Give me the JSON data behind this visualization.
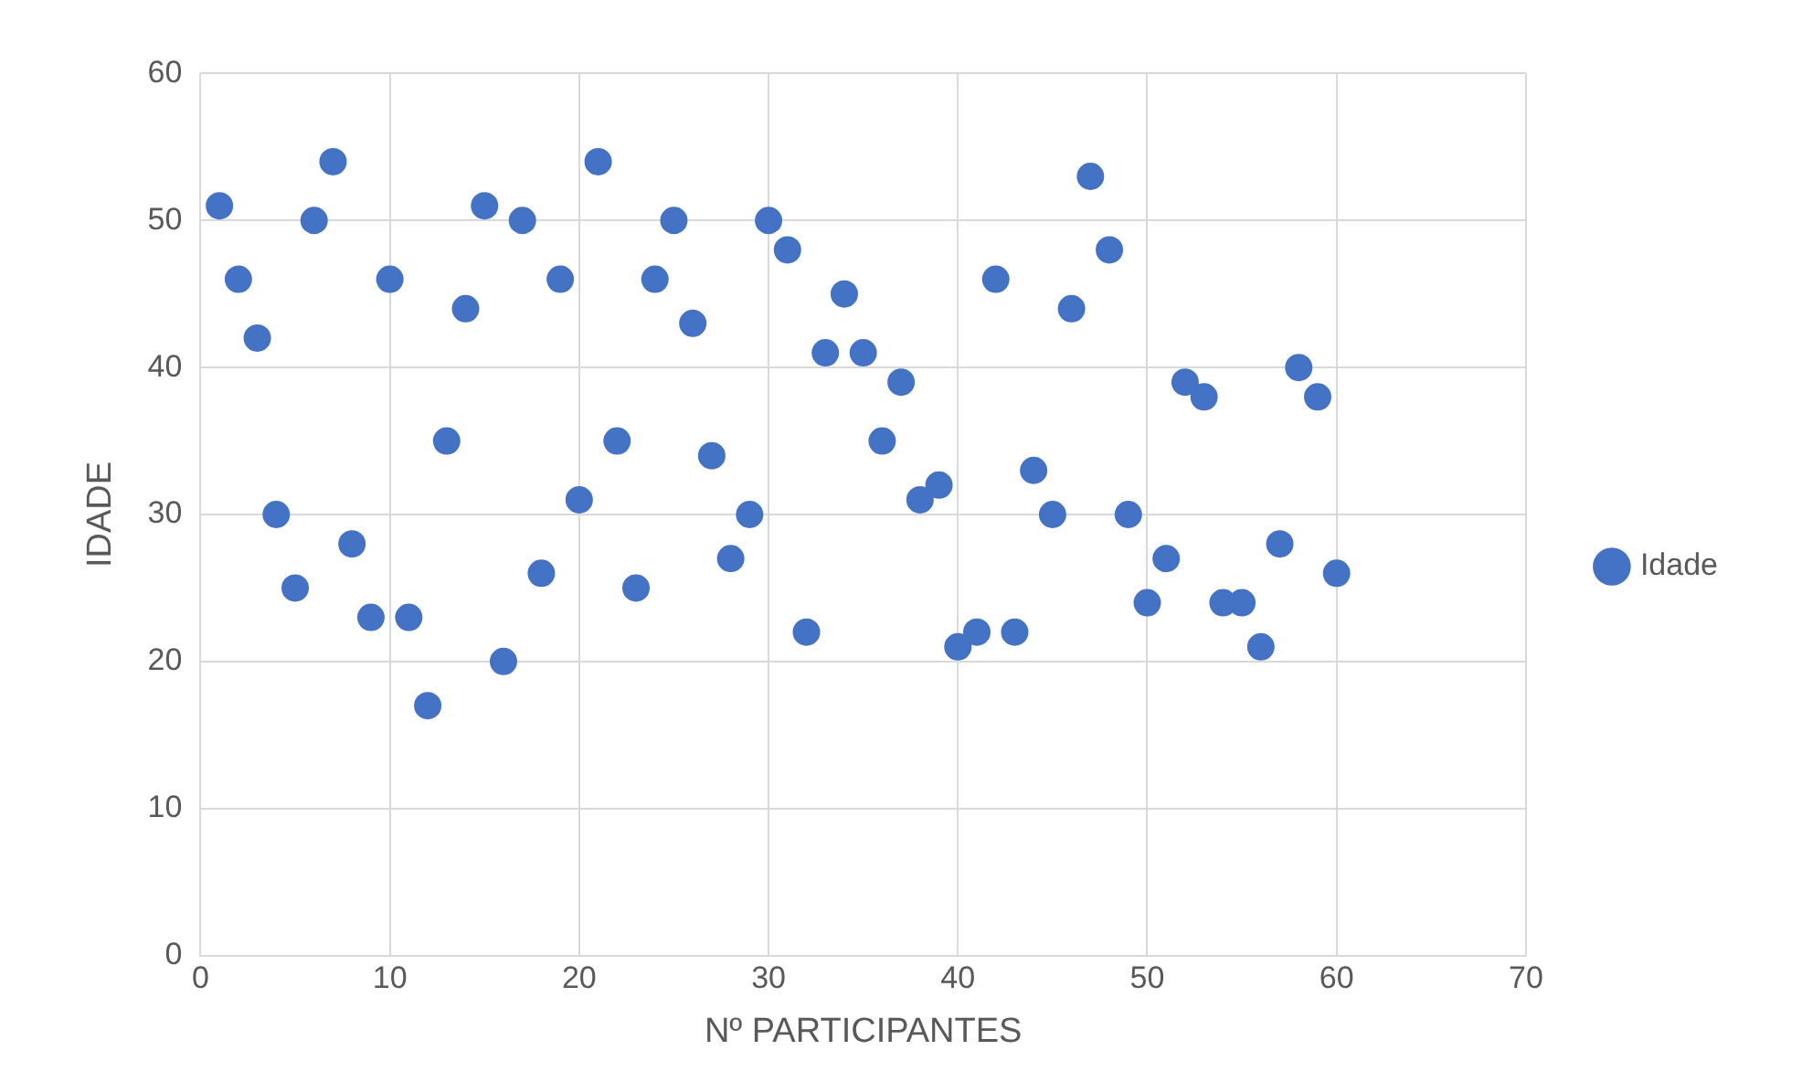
{
  "chart_data": {
    "type": "scatter",
    "xlabel": "Nº PARTICIPANTES",
    "ylabel": "IDADE",
    "x": [
      1,
      2,
      3,
      4,
      5,
      6,
      7,
      8,
      9,
      10,
      11,
      12,
      13,
      14,
      15,
      16,
      17,
      18,
      19,
      20,
      21,
      22,
      23,
      24,
      25,
      26,
      27,
      28,
      29,
      30,
      31,
      32,
      33,
      34,
      35,
      36,
      37,
      38,
      39,
      40,
      41,
      42,
      43,
      44,
      45,
      46,
      47,
      48,
      49,
      50,
      51,
      52,
      53,
      54,
      55,
      56,
      57,
      58,
      59,
      60
    ],
    "series": [
      {
        "name": "Idade",
        "color": "#4472c4",
        "values": [
          51,
          46,
          42,
          30,
          25,
          50,
          54,
          28,
          23,
          46,
          23,
          17,
          35,
          44,
          51,
          20,
          50,
          26,
          46,
          31,
          54,
          35,
          25,
          46,
          50,
          43,
          34,
          27,
          30,
          50,
          48,
          22,
          41,
          45,
          41,
          35,
          39,
          31,
          32,
          21,
          22,
          46,
          22,
          33,
          30,
          44,
          53,
          48,
          30,
          24,
          27,
          39,
          38,
          24,
          24,
          21,
          28,
          40,
          38,
          26
        ]
      }
    ],
    "xlim": [
      0,
      70
    ],
    "xticks": [
      0,
      10,
      20,
      30,
      40,
      50,
      60,
      70
    ],
    "ylim": [
      0,
      60
    ],
    "yticks": [
      0,
      10,
      20,
      30,
      40,
      50,
      60
    ],
    "grid": true,
    "legend": "right",
    "marker": "circle"
  }
}
